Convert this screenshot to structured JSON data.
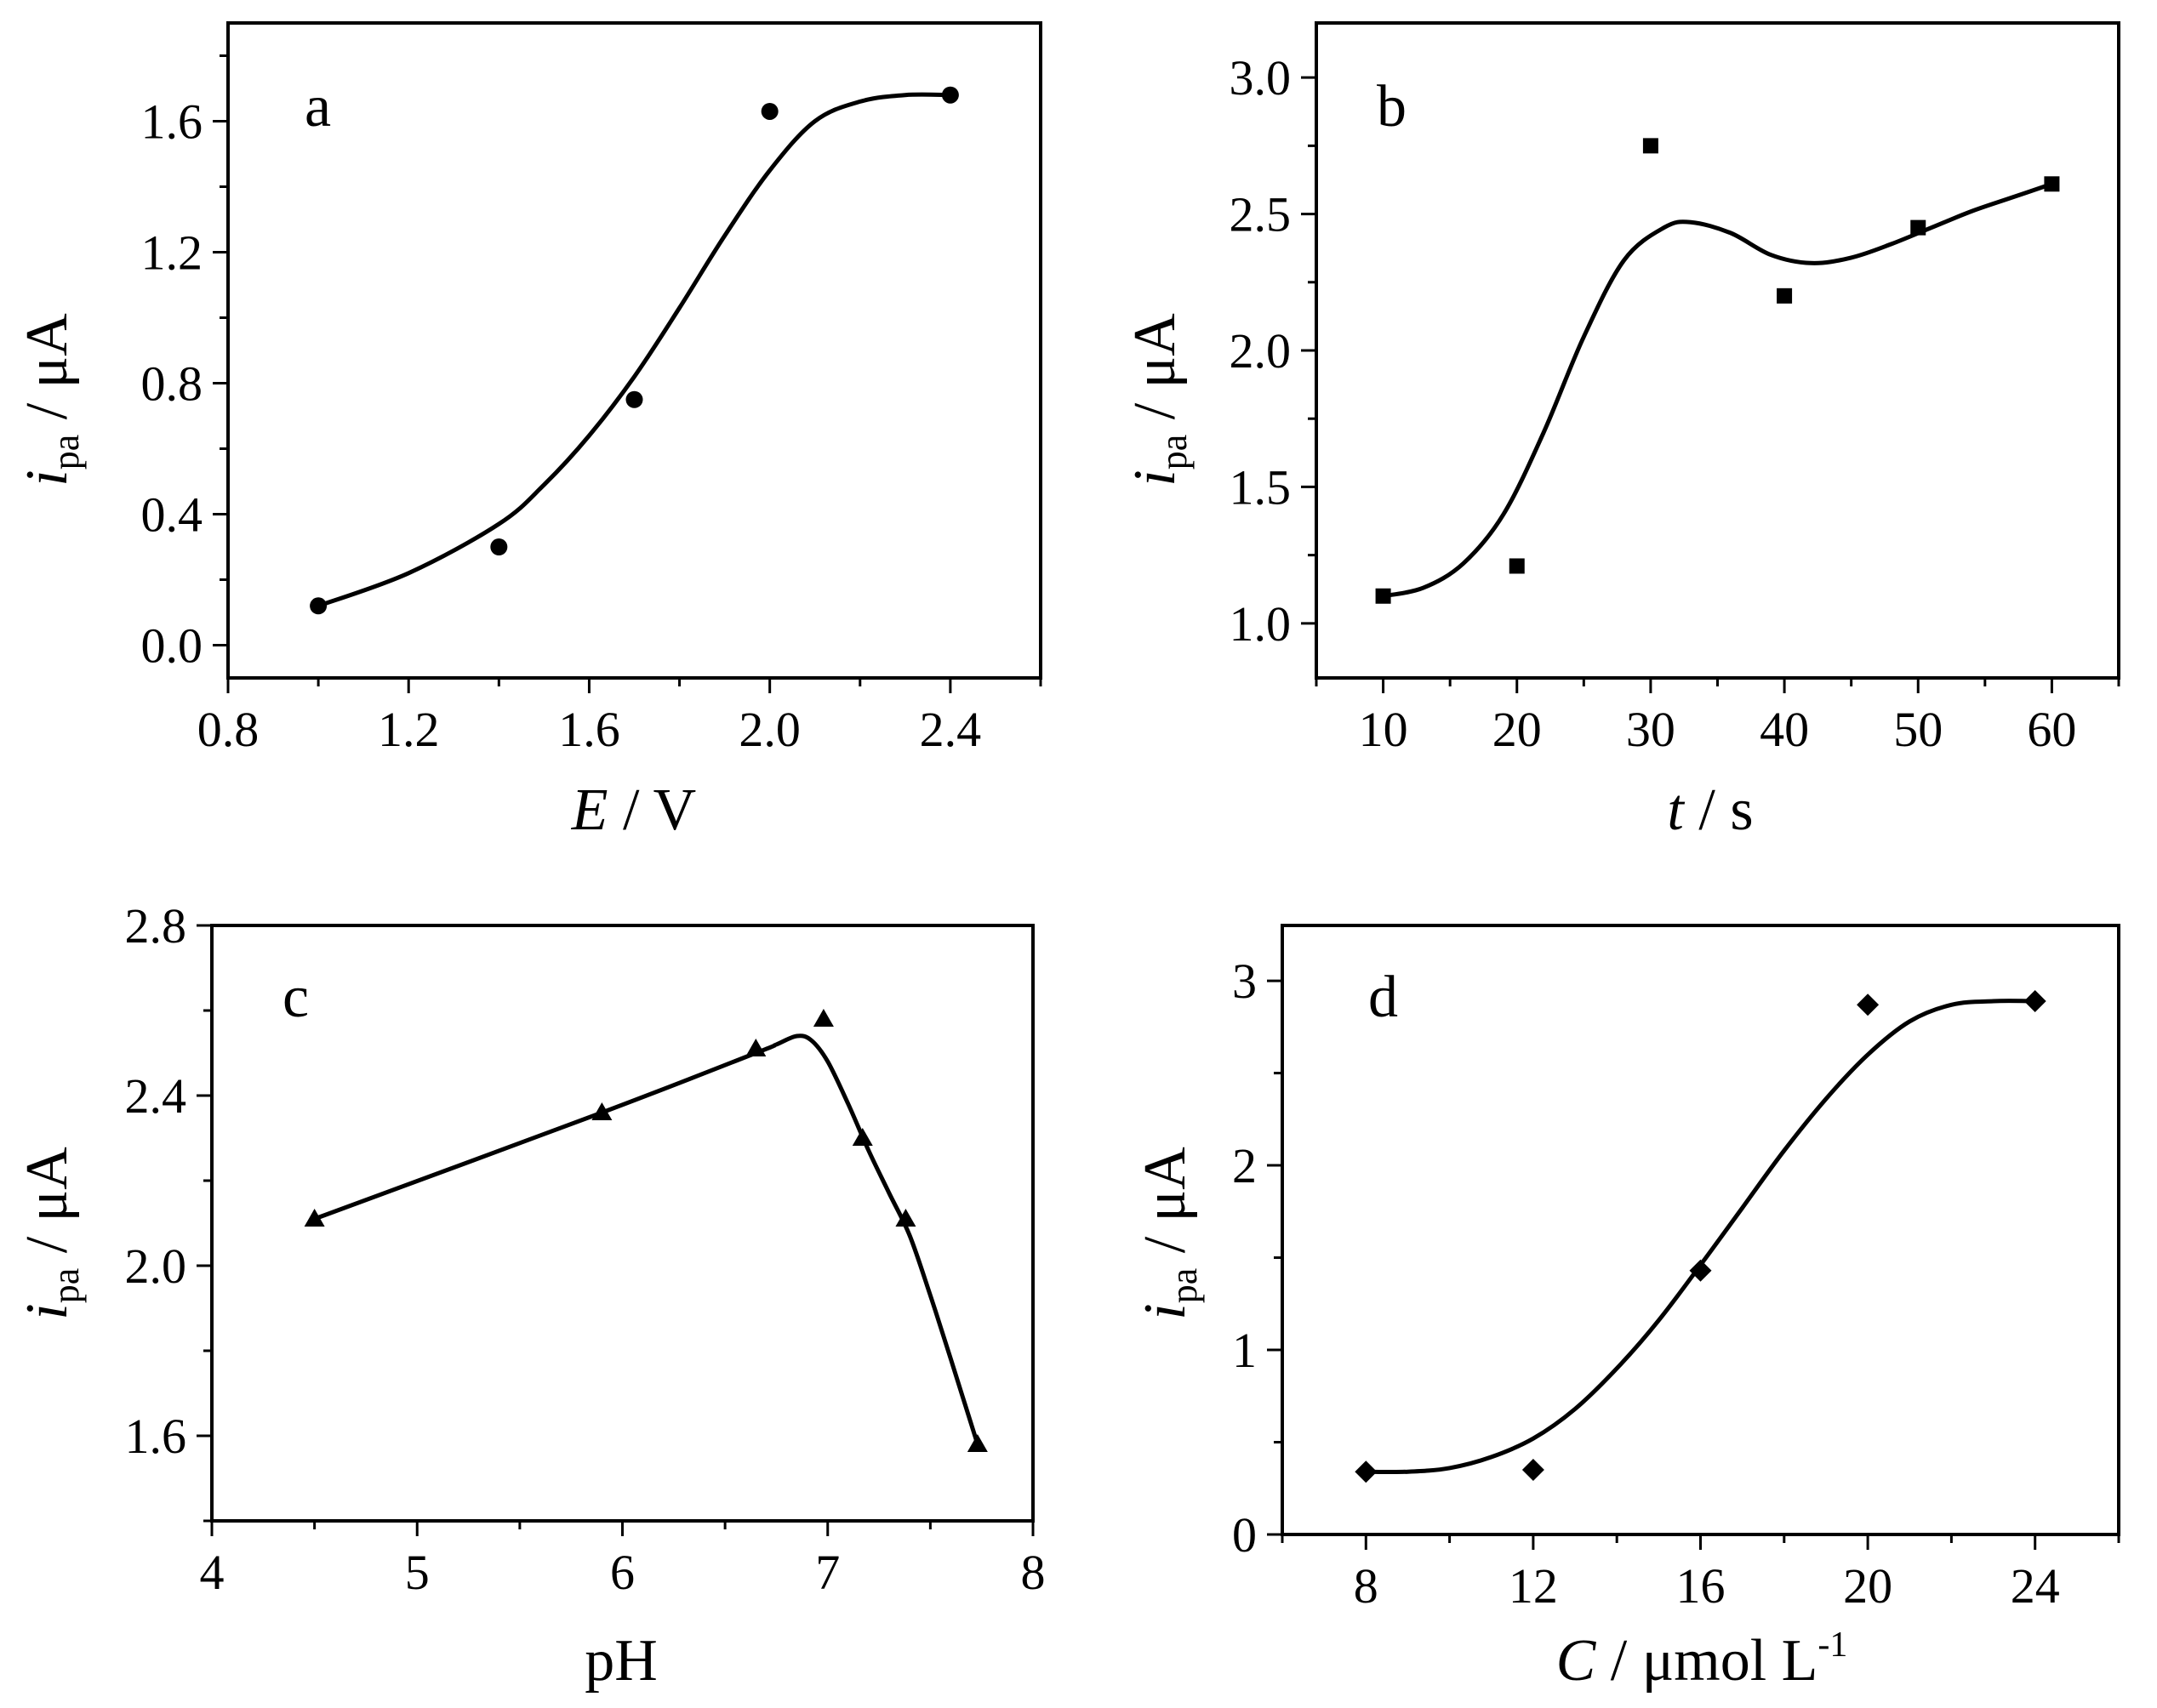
{
  "chart_data": [
    {
      "type": "scatter",
      "panel": "a",
      "marker": "circle",
      "x": [
        1.0,
        1.4,
        1.7,
        2.0,
        2.4
      ],
      "y": [
        0.12,
        0.3,
        0.75,
        1.63,
        1.68
      ],
      "fit": {
        "x": [
          1.0,
          1.2,
          1.4,
          1.5,
          1.6,
          1.7,
          1.8,
          1.9,
          2.0,
          2.1,
          2.2,
          2.3,
          2.4
        ],
        "y": [
          0.12,
          0.22,
          0.37,
          0.49,
          0.64,
          0.82,
          1.03,
          1.25,
          1.45,
          1.6,
          1.66,
          1.68,
          1.68
        ]
      },
      "xlim": [
        0.8,
        2.6
      ],
      "ylim": [
        -0.1,
        1.9
      ],
      "xticks": [
        0.8,
        1.2,
        1.6,
        2.0,
        2.4
      ],
      "yticks": [
        0.0,
        0.4,
        0.8,
        1.2,
        1.6
      ],
      "xtick_labels": [
        "0.8",
        "1.2",
        "1.6",
        "2.0",
        "2.4"
      ],
      "ytick_labels": [
        "0.0",
        "0.4",
        "0.8",
        "1.2",
        "1.6"
      ],
      "xlabel": {
        "var": "E",
        "rest": " / V"
      },
      "ylabel": {
        "var": "i",
        "sub": "pa",
        "rest": " / μA"
      }
    },
    {
      "type": "scatter",
      "panel": "b",
      "marker": "square",
      "x": [
        10,
        20,
        30,
        40,
        50,
        60
      ],
      "y": [
        1.1,
        1.21,
        2.75,
        2.2,
        2.45,
        2.61
      ],
      "fit": {
        "x": [
          10,
          13,
          16,
          19,
          22,
          25,
          28,
          31,
          33,
          36,
          39,
          42,
          45,
          48,
          51,
          54,
          57,
          60
        ],
        "y": [
          1.1,
          1.13,
          1.22,
          1.4,
          1.7,
          2.05,
          2.33,
          2.45,
          2.47,
          2.43,
          2.35,
          2.32,
          2.34,
          2.39,
          2.45,
          2.51,
          2.56,
          2.61
        ]
      },
      "xlim": [
        5,
        65
      ],
      "ylim": [
        0.8,
        3.2
      ],
      "xticks": [
        10,
        20,
        30,
        40,
        50,
        60
      ],
      "yticks": [
        1.0,
        1.5,
        2.0,
        2.5,
        3.0
      ],
      "xtick_labels": [
        "10",
        "20",
        "30",
        "40",
        "50",
        "60"
      ],
      "ytick_labels": [
        "1.0",
        "1.5",
        "2.0",
        "2.5",
        "3.0"
      ],
      "xlabel": {
        "var": "t",
        "rest": " / s"
      },
      "ylabel": {
        "var": "i",
        "sub": "pa",
        "rest": " / μA"
      }
    },
    {
      "type": "scatter",
      "panel": "c",
      "marker": "triangle",
      "x": [
        4.5,
        5.9,
        6.65,
        6.98,
        7.17,
        7.38,
        7.73
      ],
      "y": [
        2.11,
        2.36,
        2.51,
        2.58,
        2.3,
        2.11,
        1.58
      ],
      "fit": {
        "x": [
          4.5,
          5.9,
          6.65,
          6.75,
          6.85,
          6.92,
          7.0,
          7.1,
          7.2,
          7.3,
          7.4,
          7.5,
          7.6,
          7.73
        ],
        "y": [
          2.11,
          2.36,
          2.5,
          2.52,
          2.54,
          2.53,
          2.48,
          2.38,
          2.27,
          2.17,
          2.07,
          1.93,
          1.78,
          1.58
        ]
      },
      "xlim": [
        4,
        8
      ],
      "ylim": [
        1.4,
        2.8
      ],
      "xticks": [
        4,
        5,
        6,
        7,
        8
      ],
      "yticks": [
        1.6,
        2.0,
        2.4,
        2.8
      ],
      "xtick_labels": [
        "4",
        "5",
        "6",
        "7",
        "8"
      ],
      "ytick_labels": [
        "1.6",
        "2.0",
        "2.4",
        "2.8"
      ],
      "xlabel": {
        "var": "",
        "rest": "pH"
      },
      "ylabel": {
        "var": "i",
        "sub": "pa",
        "rest": " / μA"
      }
    },
    {
      "type": "scatter",
      "panel": "d",
      "marker": "diamond",
      "x": [
        8,
        12,
        16,
        20,
        24
      ],
      "y": [
        0.34,
        0.35,
        1.43,
        2.87,
        2.89
      ],
      "fit": {
        "x": [
          8,
          9,
          10,
          11,
          12,
          13,
          14,
          15,
          16,
          17,
          18,
          19,
          20,
          21,
          22,
          23,
          24
        ],
        "y": [
          0.34,
          0.34,
          0.36,
          0.42,
          0.52,
          0.68,
          0.9,
          1.16,
          1.46,
          1.77,
          2.08,
          2.36,
          2.6,
          2.78,
          2.87,
          2.89,
          2.89
        ]
      },
      "xlim": [
        6,
        26
      ],
      "ylim": [
        0,
        3.3
      ],
      "xticks": [
        8,
        12,
        16,
        20,
        24
      ],
      "yticks": [
        0,
        1,
        2,
        3
      ],
      "xtick_labels": [
        "8",
        "12",
        "16",
        "20",
        "24"
      ],
      "ytick_labels": [
        "0",
        "1",
        "2",
        "3"
      ],
      "xlabel": {
        "var": "C",
        "rest": " / μmol L",
        "sup": "-1"
      },
      "ylabel": {
        "var": "i",
        "sub": "pa",
        "rest": " / μA"
      }
    }
  ]
}
